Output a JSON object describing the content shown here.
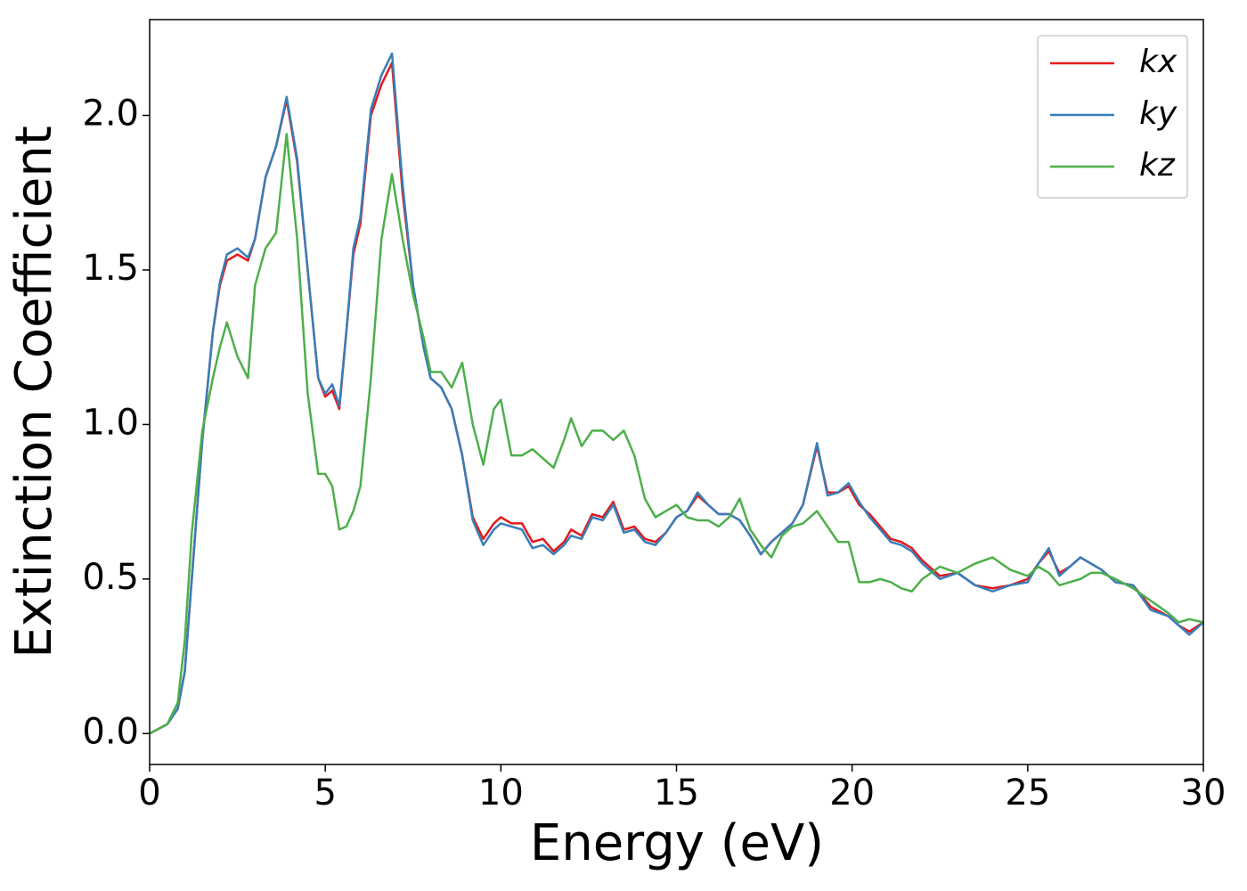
{
  "chart_data": {
    "type": "line",
    "xlabel": "Energy (eV)",
    "ylabel": "Extinction Coefficient",
    "xlim": [
      0,
      30
    ],
    "ylim": [
      -0.1,
      2.31
    ],
    "xticks": [
      0,
      5,
      10,
      15,
      20,
      25,
      30
    ],
    "yticks": [
      {
        "value": 0,
        "label": "0.0"
      },
      0.5,
      {
        "value": 1,
        "label": "1.0"
      },
      1.5,
      {
        "value": 2,
        "label": "2.0"
      }
    ],
    "legend": "upper right",
    "x": [
      0,
      0.5,
      0.8,
      1,
      1.2,
      1.5,
      1.8,
      2,
      2.2,
      2.5,
      2.8,
      3,
      3.3,
      3.6,
      3.9,
      4.2,
      4.5,
      4.8,
      5,
      5.2,
      5.4,
      5.6,
      5.8,
      6,
      6.3,
      6.6,
      6.9,
      7.2,
      7.5,
      7.8,
      8,
      8.3,
      8.6,
      8.9,
      9.2,
      9.5,
      9.8,
      10,
      10.3,
      10.6,
      10.9,
      11.2,
      11.5,
      11.8,
      12,
      12.3,
      12.6,
      12.9,
      13.2,
      13.5,
      13.8,
      14.1,
      14.4,
      14.7,
      15,
      15.3,
      15.6,
      15.9,
      16.2,
      16.5,
      16.8,
      17.1,
      17.4,
      17.7,
      18,
      18.3,
      18.6,
      19,
      19.3,
      19.6,
      19.9,
      20.2,
      20.5,
      20.8,
      21.1,
      21.4,
      21.7,
      22,
      22.5,
      23,
      23.5,
      24,
      24.5,
      25,
      25.3,
      25.6,
      25.9,
      26.2,
      26.5,
      26.8,
      27.1,
      27.5,
      28,
      28.5,
      29,
      29.3,
      29.6,
      30
    ],
    "series": [
      {
        "name": "kx",
        "color": "#e41a1c",
        "values": [
          0,
          0.03,
          0.08,
          0.2,
          0.5,
          0.95,
          1.3,
          1.45,
          1.53,
          1.55,
          1.53,
          1.6,
          1.8,
          1.9,
          2.05,
          1.85,
          1.5,
          1.15,
          1.09,
          1.11,
          1.05,
          1.3,
          1.55,
          1.65,
          2.0,
          2.1,
          2.17,
          1.75,
          1.45,
          1.25,
          1.15,
          1.12,
          1.05,
          0.9,
          0.7,
          0.63,
          0.68,
          0.7,
          0.68,
          0.68,
          0.62,
          0.63,
          0.59,
          0.62,
          0.66,
          0.64,
          0.71,
          0.7,
          0.75,
          0.66,
          0.67,
          0.63,
          0.62,
          0.65,
          0.7,
          0.72,
          0.77,
          0.74,
          0.71,
          0.71,
          0.69,
          0.64,
          0.58,
          0.62,
          0.65,
          0.68,
          0.74,
          0.93,
          0.78,
          0.78,
          0.8,
          0.74,
          0.71,
          0.67,
          0.63,
          0.62,
          0.6,
          0.56,
          0.51,
          0.52,
          0.48,
          0.47,
          0.48,
          0.5,
          0.55,
          0.59,
          0.52,
          0.54,
          0.57,
          0.55,
          0.53,
          0.49,
          0.48,
          0.41,
          0.38,
          0.35,
          0.33,
          0.36
        ]
      },
      {
        "name": "ky",
        "color": "#377eb8",
        "values": [
          0,
          0.03,
          0.08,
          0.2,
          0.5,
          0.95,
          1.3,
          1.46,
          1.55,
          1.57,
          1.54,
          1.6,
          1.8,
          1.9,
          2.06,
          1.86,
          1.5,
          1.15,
          1.1,
          1.13,
          1.06,
          1.3,
          1.57,
          1.67,
          2.02,
          2.13,
          2.2,
          1.78,
          1.45,
          1.25,
          1.15,
          1.12,
          1.05,
          0.9,
          0.69,
          0.61,
          0.66,
          0.68,
          0.67,
          0.66,
          0.6,
          0.61,
          0.58,
          0.61,
          0.64,
          0.63,
          0.7,
          0.69,
          0.74,
          0.65,
          0.66,
          0.62,
          0.61,
          0.65,
          0.7,
          0.72,
          0.78,
          0.74,
          0.71,
          0.71,
          0.69,
          0.64,
          0.58,
          0.62,
          0.65,
          0.68,
          0.74,
          0.94,
          0.77,
          0.78,
          0.81,
          0.75,
          0.7,
          0.66,
          0.62,
          0.61,
          0.59,
          0.55,
          0.5,
          0.52,
          0.48,
          0.46,
          0.48,
          0.49,
          0.55,
          0.6,
          0.51,
          0.54,
          0.57,
          0.55,
          0.53,
          0.49,
          0.48,
          0.4,
          0.38,
          0.35,
          0.32,
          0.36
        ]
      },
      {
        "name": "kz",
        "color": "#4daf4a",
        "values": [
          0,
          0.03,
          0.1,
          0.3,
          0.65,
          0.98,
          1.15,
          1.25,
          1.33,
          1.22,
          1.15,
          1.45,
          1.57,
          1.62,
          1.94,
          1.6,
          1.1,
          0.84,
          0.84,
          0.8,
          0.66,
          0.67,
          0.72,
          0.8,
          1.15,
          1.6,
          1.81,
          1.6,
          1.42,
          1.28,
          1.17,
          1.17,
          1.12,
          1.2,
          1.0,
          0.87,
          1.05,
          1.08,
          0.9,
          0.9,
          0.92,
          0.89,
          0.86,
          0.95,
          1.02,
          0.93,
          0.98,
          0.98,
          0.95,
          0.98,
          0.9,
          0.76,
          0.7,
          0.72,
          0.74,
          0.7,
          0.69,
          0.69,
          0.67,
          0.7,
          0.76,
          0.66,
          0.61,
          0.57,
          0.64,
          0.67,
          0.68,
          0.72,
          0.67,
          0.62,
          0.62,
          0.49,
          0.49,
          0.5,
          0.49,
          0.47,
          0.46,
          0.5,
          0.54,
          0.52,
          0.55,
          0.57,
          0.53,
          0.51,
          0.54,
          0.52,
          0.48,
          0.49,
          0.5,
          0.52,
          0.52,
          0.5,
          0.47,
          0.43,
          0.39,
          0.36,
          0.37,
          0.36
        ]
      }
    ]
  }
}
